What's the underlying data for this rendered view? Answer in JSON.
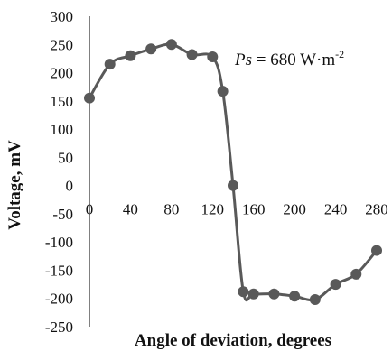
{
  "chart_data": {
    "type": "line",
    "title": "",
    "xlabel": "Angle of deviation, degrees",
    "ylabel": "Voltage, mV",
    "xlim": [
      0,
      280
    ],
    "ylim": [
      -250,
      300
    ],
    "x_ticks": [
      0,
      40,
      80,
      120,
      160,
      200,
      240,
      280
    ],
    "y_ticks": [
      300,
      250,
      200,
      150,
      100,
      50,
      0,
      -50,
      -100,
      -150,
      -200,
      -250
    ],
    "grid": false,
    "legend": "none",
    "annotation": {
      "symbol": "Ps",
      "text": " = 680 W·m",
      "superscript": "-2"
    },
    "series": [
      {
        "x": [
          0,
          20,
          40,
          60,
          80,
          100,
          120,
          130,
          140,
          150,
          160,
          180,
          200,
          220,
          240,
          260,
          280
        ],
        "y": [
          155,
          215,
          230,
          242,
          250,
          232,
          228,
          167,
          0,
          -188,
          -192,
          -192,
          -196,
          -202,
          -175,
          -157,
          -115
        ],
        "color": "#595959"
      }
    ]
  }
}
